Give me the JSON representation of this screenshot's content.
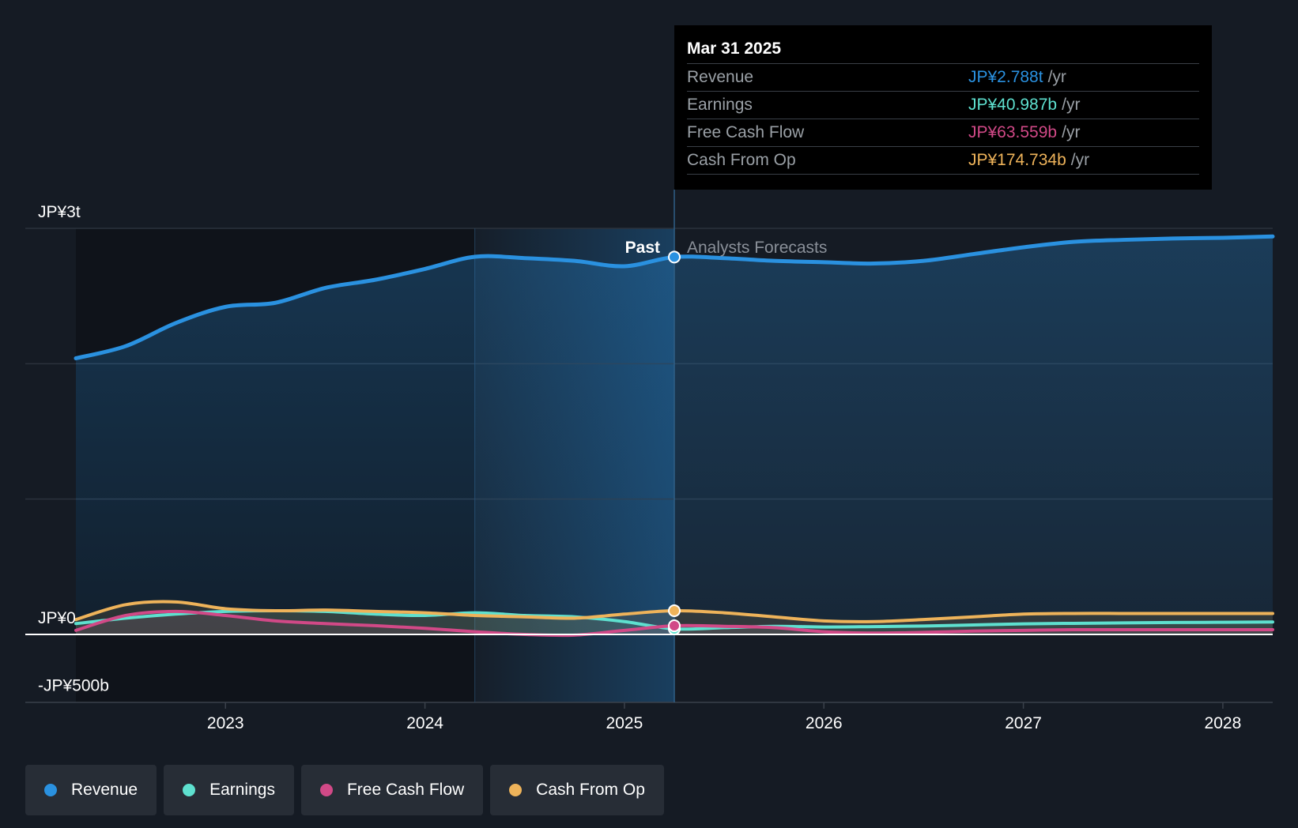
{
  "colors": {
    "revenue": "#2a91e0",
    "earnings": "#5ee0cf",
    "free_cash_flow": "#d14987",
    "cash_from_op": "#eeb35a",
    "grid": "#2b323c",
    "past_shade": "#1d5c8f"
  },
  "tooltip": {
    "date": "Mar 31 2025",
    "unit": "/yr",
    "rows": [
      {
        "label": "Revenue",
        "value": "JP¥2.788t"
      },
      {
        "label": "Earnings",
        "value": "JP¥40.987b"
      },
      {
        "label": "Free Cash Flow",
        "value": "JP¥63.559b"
      },
      {
        "label": "Cash From Op",
        "value": "JP¥174.734b"
      }
    ]
  },
  "chart_data": {
    "type": "area",
    "y_unit": "JP¥ billions",
    "ylim": [
      -500,
      3000
    ],
    "y_ticks": [
      {
        "value": 3000,
        "label": "JP¥3t"
      },
      {
        "value": 0,
        "label": "JP¥0"
      },
      {
        "value": -500,
        "label": "-JP¥500b"
      }
    ],
    "x_ticks": [
      "2023",
      "2024",
      "2025",
      "2026",
      "2027",
      "2028"
    ],
    "xlim": [
      2022.25,
      2028.25
    ],
    "past_label": "Past",
    "forecast_label": "Analysts Forecasts",
    "divider_x": 2025.25,
    "highlight_start_x": 2024.25,
    "series": [
      {
        "key": "revenue",
        "name": "Revenue",
        "color_key": "revenue",
        "points": [
          [
            2022.25,
            2040
          ],
          [
            2022.5,
            2130
          ],
          [
            2022.75,
            2300
          ],
          [
            2023.0,
            2420
          ],
          [
            2023.25,
            2450
          ],
          [
            2023.5,
            2560
          ],
          [
            2023.75,
            2620
          ],
          [
            2024.0,
            2700
          ],
          [
            2024.25,
            2790
          ],
          [
            2024.5,
            2780
          ],
          [
            2024.75,
            2760
          ],
          [
            2025.0,
            2720
          ],
          [
            2025.25,
            2788
          ],
          [
            2025.5,
            2780
          ],
          [
            2025.75,
            2760
          ],
          [
            2026.0,
            2750
          ],
          [
            2026.25,
            2740
          ],
          [
            2026.5,
            2760
          ],
          [
            2026.75,
            2810
          ],
          [
            2027.0,
            2860
          ],
          [
            2027.25,
            2900
          ],
          [
            2027.5,
            2915
          ],
          [
            2027.75,
            2925
          ],
          [
            2028.0,
            2930
          ],
          [
            2028.25,
            2940
          ]
        ]
      },
      {
        "key": "earnings",
        "name": "Earnings",
        "color_key": "earnings",
        "points": [
          [
            2022.25,
            80
          ],
          [
            2022.5,
            120
          ],
          [
            2022.75,
            150
          ],
          [
            2023.0,
            170
          ],
          [
            2023.25,
            175
          ],
          [
            2023.5,
            170
          ],
          [
            2023.75,
            150
          ],
          [
            2024.0,
            140
          ],
          [
            2024.25,
            160
          ],
          [
            2024.5,
            140
          ],
          [
            2024.75,
            130
          ],
          [
            2025.0,
            95
          ],
          [
            2025.25,
            41
          ],
          [
            2025.5,
            50
          ],
          [
            2025.75,
            60
          ],
          [
            2026.0,
            55
          ],
          [
            2026.25,
            58
          ],
          [
            2026.5,
            62
          ],
          [
            2026.75,
            70
          ],
          [
            2027.0,
            78
          ],
          [
            2027.25,
            82
          ],
          [
            2027.5,
            85
          ],
          [
            2027.75,
            88
          ],
          [
            2028.0,
            90
          ],
          [
            2028.25,
            92
          ]
        ]
      },
      {
        "key": "free_cash_flow",
        "name": "Free Cash Flow",
        "color_key": "free_cash_flow",
        "points": [
          [
            2022.25,
            30
          ],
          [
            2022.5,
            140
          ],
          [
            2022.75,
            170
          ],
          [
            2023.0,
            140
          ],
          [
            2023.25,
            100
          ],
          [
            2023.5,
            80
          ],
          [
            2023.75,
            65
          ],
          [
            2024.0,
            45
          ],
          [
            2024.25,
            20
          ],
          [
            2024.5,
            0
          ],
          [
            2024.75,
            -5
          ],
          [
            2025.0,
            30
          ],
          [
            2025.25,
            64
          ],
          [
            2025.5,
            60
          ],
          [
            2025.75,
            50
          ],
          [
            2026.0,
            20
          ],
          [
            2026.25,
            10
          ],
          [
            2026.5,
            15
          ],
          [
            2026.75,
            25
          ],
          [
            2027.0,
            30
          ],
          [
            2027.25,
            35
          ],
          [
            2027.5,
            35
          ],
          [
            2027.75,
            35
          ],
          [
            2028.0,
            35
          ],
          [
            2028.25,
            35
          ]
        ]
      },
      {
        "key": "cash_from_op",
        "name": "Cash From Op",
        "color_key": "cash_from_op",
        "points": [
          [
            2022.25,
            110
          ],
          [
            2022.5,
            220
          ],
          [
            2022.75,
            240
          ],
          [
            2023.0,
            190
          ],
          [
            2023.25,
            175
          ],
          [
            2023.5,
            180
          ],
          [
            2023.75,
            170
          ],
          [
            2024.0,
            160
          ],
          [
            2024.25,
            140
          ],
          [
            2024.5,
            130
          ],
          [
            2024.75,
            120
          ],
          [
            2025.0,
            150
          ],
          [
            2025.25,
            175
          ],
          [
            2025.5,
            160
          ],
          [
            2025.75,
            130
          ],
          [
            2026.0,
            100
          ],
          [
            2026.25,
            95
          ],
          [
            2026.5,
            110
          ],
          [
            2026.75,
            130
          ],
          [
            2027.0,
            150
          ],
          [
            2027.25,
            155
          ],
          [
            2027.5,
            155
          ],
          [
            2027.75,
            155
          ],
          [
            2028.0,
            155
          ],
          [
            2028.25,
            155
          ]
        ]
      }
    ]
  },
  "legend": [
    {
      "label": "Revenue",
      "color_key": "revenue"
    },
    {
      "label": "Earnings",
      "color_key": "earnings"
    },
    {
      "label": "Free Cash Flow",
      "color_key": "free_cash_flow"
    },
    {
      "label": "Cash From Op",
      "color_key": "cash_from_op"
    }
  ]
}
